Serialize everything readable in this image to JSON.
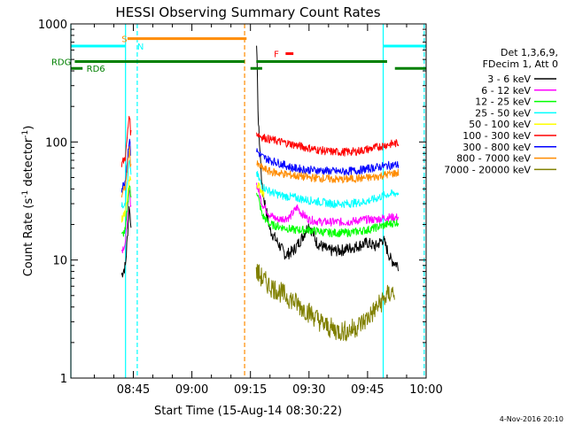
{
  "chart_data": {
    "type": "line",
    "title": "HESSI Observing Summary Count Rates",
    "xlabel": "Start Time (15-Aug-14 08:30:22)",
    "ylabel_parts": [
      "Count Rate (s",
      "-1",
      " detector",
      "-1",
      ")"
    ],
    "yscale": "log",
    "ylim": [
      1,
      1000
    ],
    "xlim_minutes_after_0830": [
      -1,
      90
    ],
    "x_tick_labels": [
      "08:45",
      "09:00",
      "09:15",
      "09:30",
      "09:45",
      "10:00"
    ],
    "x_tick_minutes": [
      15,
      30,
      45,
      60,
      75,
      90
    ],
    "y_tick_labels": [
      "1",
      "10",
      "100",
      "1000"
    ],
    "y_tick_values": [
      1,
      10,
      100,
      1000
    ],
    "legend": {
      "header": [
        "Det 1,3,6,9,",
        "FDecim 1, Att 0"
      ],
      "entries": [
        {
          "label": "3 - 6 keV",
          "color": "#000000"
        },
        {
          "label": "6 - 12 keV",
          "color": "#ff00ff"
        },
        {
          "label": "12 - 25 keV",
          "color": "#00ff00"
        },
        {
          "label": "25 - 50 keV",
          "color": "#00ffff"
        },
        {
          "label": "50 - 100 keV",
          "color": "#ffff00"
        },
        {
          "label": "100 - 300 keV",
          "color": "#ff0000"
        },
        {
          "label": "300 - 800 keV",
          "color": "#0000ff"
        },
        {
          "label": "800 - 7000 keV",
          "color": "#ff8c00"
        },
        {
          "label": "7000 - 20000 keV",
          "color": "#808000"
        }
      ]
    },
    "flags": [
      {
        "label": "S",
        "color": "#ff8c00",
        "level": 750,
        "segments": [
          [
            13.5,
            44
          ]
        ],
        "label_at": 12
      },
      {
        "label": "N",
        "color": "#00ffff",
        "level": 650,
        "segments": [
          [
            -1,
            13
          ],
          [
            79,
            90
          ]
        ],
        "label_at": 16
      },
      {
        "label": "F",
        "color": "#ff0000",
        "level": 560,
        "segments": [
          [
            54,
            56
          ]
        ],
        "label_at": 51
      },
      {
        "label": "RDG",
        "color": "#008000",
        "level": 480,
        "segments": [
          [
            0,
            43.5
          ],
          [
            46.5,
            80
          ]
        ],
        "label_at": -6
      },
      {
        "label": "RD6",
        "color": "#008000",
        "level": 420,
        "segments": [
          [
            -1,
            2
          ],
          [
            45,
            48
          ],
          [
            82,
            90
          ]
        ],
        "label_at": 3
      }
    ],
    "vlines": [
      {
        "minute": -1,
        "color": "#00ffff",
        "style": "solid"
      },
      {
        "minute": 13,
        "color": "#00ffff",
        "style": "solid"
      },
      {
        "minute": 16,
        "color": "#00ffff",
        "style": "dashed"
      },
      {
        "minute": 43.5,
        "color": "#ff8c00",
        "style": "dashed"
      },
      {
        "minute": 79,
        "color": "#00ffff",
        "style": "solid"
      },
      {
        "minute": 89.5,
        "color": "#00ffff",
        "style": "dashed"
      }
    ],
    "segments": [
      [
        12,
        14.5
      ],
      [
        46.5,
        83.5
      ]
    ],
    "series": [
      {
        "name": "3 - 6 keV",
        "color": "#000000",
        "x": [
          12,
          13,
          14,
          14.3,
          46.5,
          47,
          48,
          50,
          52,
          54,
          56,
          58,
          60,
          62,
          65,
          68,
          72,
          75,
          77,
          79,
          81,
          83
        ],
        "y": [
          7.5,
          9,
          30,
          20,
          900,
          150,
          40,
          18,
          14,
          11,
          12,
          15,
          20,
          14,
          12,
          12,
          13,
          14,
          13,
          15,
          10,
          9
        ]
      },
      {
        "name": "6 - 12 keV",
        "color": "#ff00ff",
        "x": [
          12,
          13,
          14,
          14.3,
          46.5,
          48,
          50,
          52,
          55,
          57,
          58,
          60,
          63,
          66,
          70,
          74,
          77,
          80,
          83
        ],
        "y": [
          12,
          14,
          40,
          30,
          45,
          30,
          24,
          22,
          23,
          28,
          25,
          22,
          21,
          21,
          21,
          22,
          22,
          23,
          23
        ]
      },
      {
        "name": "12 - 25 keV",
        "color": "#00ff00",
        "x": [
          12,
          13,
          14,
          14.3,
          46.5,
          48,
          50,
          53,
          56,
          60,
          65,
          70,
          75,
          80,
          83
        ],
        "y": [
          16,
          18,
          45,
          35,
          40,
          24,
          20,
          19,
          18,
          18,
          17,
          17,
          18,
          20,
          21
        ]
      },
      {
        "name": "25 - 50 keV",
        "color": "#00ffff",
        "x": [
          12,
          13,
          14,
          14.3,
          46.5,
          48,
          50,
          53,
          56,
          60,
          63,
          66,
          70,
          74,
          77,
          80,
          83
        ],
        "y": [
          28,
          32,
          70,
          55,
          55,
          42,
          38,
          35,
          34,
          32,
          31,
          30,
          30,
          31,
          33,
          36,
          37
        ]
      },
      {
        "name": "50 - 100 keV",
        "color": "#ffff00",
        "x": [
          12,
          13,
          14,
          46.5,
          47.5,
          48.5
        ],
        "y": [
          22,
          25,
          50,
          45,
          40,
          36
        ]
      },
      {
        "name": "100 - 300 keV",
        "color": "#ff0000",
        "x": [
          12,
          13,
          14,
          14.3,
          46.5,
          48,
          50,
          53,
          56,
          59,
          62,
          65,
          68,
          72,
          76,
          80,
          83
        ],
        "y": [
          65,
          75,
          180,
          120,
          120,
          110,
          105,
          100,
          95,
          90,
          86,
          83,
          82,
          83,
          88,
          95,
          98
        ]
      },
      {
        "name": "300 - 800 keV",
        "color": "#0000ff",
        "x": [
          12,
          13,
          14,
          14.3,
          46.5,
          48,
          50,
          53,
          56,
          60,
          64,
          68,
          72,
          76,
          80,
          83
        ],
        "y": [
          40,
          48,
          110,
          80,
          85,
          75,
          70,
          65,
          60,
          58,
          57,
          56,
          57,
          60,
          63,
          64
        ]
      },
      {
        "name": "800 - 7000 keV",
        "color": "#ff8c00",
        "x": [
          12,
          13,
          14,
          14.3,
          46.5,
          48,
          50,
          53,
          56,
          60,
          64,
          68,
          72,
          76,
          80,
          83
        ],
        "y": [
          35,
          42,
          90,
          65,
          65,
          60,
          56,
          54,
          52,
          50,
          49,
          48,
          49,
          50,
          53,
          55
        ]
      },
      {
        "name": "7000 - 20000 keV",
        "color": "#808000",
        "x": [
          46.5,
          48,
          50,
          52,
          54,
          56,
          58,
          60,
          62,
          64,
          66,
          68,
          70,
          72,
          74,
          76,
          78,
          80,
          82
        ],
        "y": [
          8,
          7,
          6,
          5.5,
          5,
          4.5,
          4,
          3.6,
          3.2,
          2.8,
          2.6,
          2.5,
          2.5,
          2.7,
          3.0,
          3.5,
          4.2,
          5.0,
          5.5
        ]
      }
    ]
  },
  "footer_timestamp": "4-Nov-2016 20:10"
}
